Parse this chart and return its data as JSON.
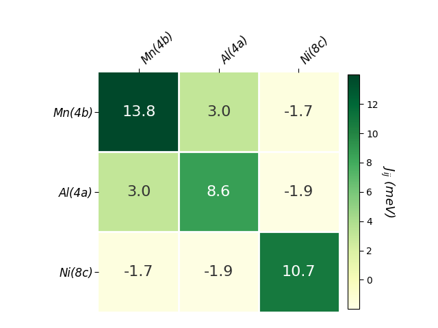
{
  "matrix": [
    [
      13.8,
      3.0,
      -1.7
    ],
    [
      3.0,
      8.6,
      -1.9
    ],
    [
      -1.7,
      -1.9,
      10.7
    ]
  ],
  "labels": [
    "Mn(4b)",
    "Al(4a)",
    "Ni(8c)"
  ],
  "vmin": -2,
  "vmax": 14,
  "colorbar_label": "$J_{ij}$ (meV)",
  "colorbar_ticks": [
    0,
    2,
    4,
    6,
    8,
    10,
    12
  ],
  "white_text_values": [
    13.8,
    8.6,
    10.7
  ],
  "cell_text_fontsize": 16,
  "axis_label_fontsize": 12,
  "colorbar_label_fontsize": 13,
  "background_color": "#ffffff",
  "cmap": "YlGn"
}
